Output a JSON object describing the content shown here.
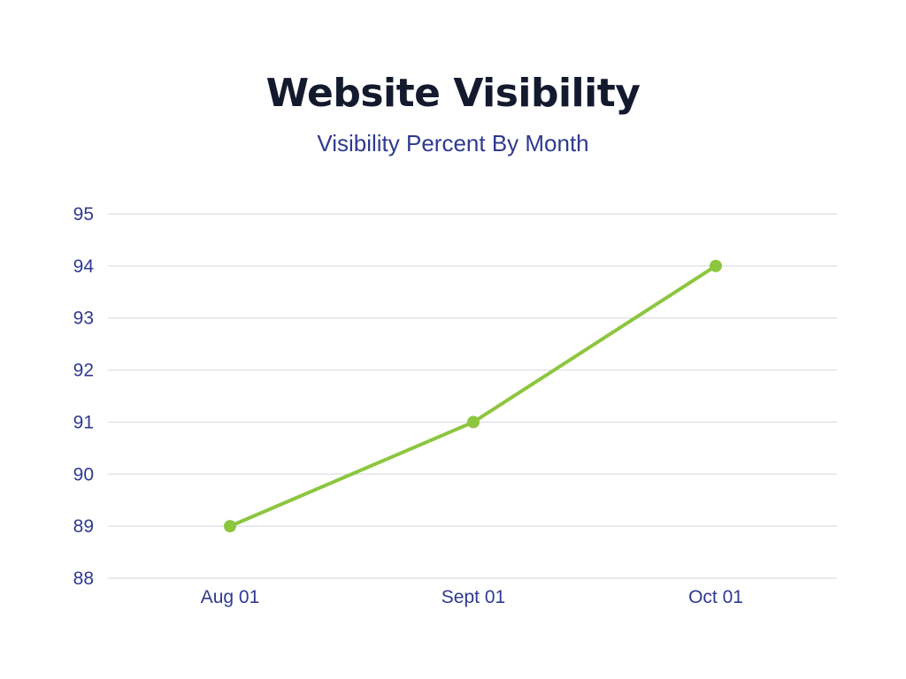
{
  "chart_data": {
    "type": "line",
    "title": "Website Visibility",
    "subtitle": "Visibility Percent By Month",
    "categories": [
      "Aug 01",
      "Sept 01",
      "Oct 01"
    ],
    "series": [
      {
        "values": [
          89,
          91,
          94
        ]
      }
    ],
    "ylim": [
      88,
      95
    ],
    "y_ticks": [
      "88",
      "89",
      "90",
      "91",
      "92",
      "93",
      "94",
      "95"
    ],
    "grid": true,
    "legend": "none",
    "colors": {
      "line": "#8cc63f",
      "grid": "#dcdde8",
      "tick_text": "#2f3a8f",
      "title": "#141a2e",
      "subtitle": "#2f3a8f"
    }
  }
}
